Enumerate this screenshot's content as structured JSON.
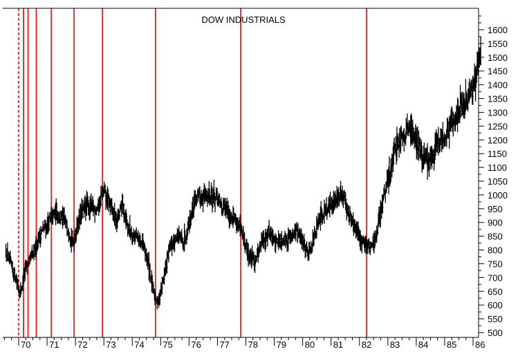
{
  "chart_data": {
    "type": "bar",
    "subtype": "ohlc",
    "title": "DOW INDUSTRIALS",
    "xlabel": "",
    "ylabel": "",
    "ylim": [
      470,
      1660
    ],
    "xlim": [
      1970.0,
      1986.4
    ],
    "grid": false,
    "y_axis_side": "right",
    "yticks": [
      500,
      550,
      600,
      650,
      700,
      750,
      800,
      850,
      900,
      950,
      1000,
      1050,
      1100,
      1150,
      1200,
      1250,
      1300,
      1350,
      1400,
      1450,
      1500,
      1550,
      1600
    ],
    "xticks": [
      {
        "x": 1970,
        "label": "70"
      },
      {
        "x": 1971,
        "label": "71"
      },
      {
        "x": 1972,
        "label": "72"
      },
      {
        "x": 1973,
        "label": "73"
      },
      {
        "x": 1974,
        "label": "74"
      },
      {
        "x": 1975,
        "label": "75"
      },
      {
        "x": 1976,
        "label": "76"
      },
      {
        "x": 1977,
        "label": "77"
      },
      {
        "x": 1978,
        "label": "78"
      },
      {
        "x": 1979,
        "label": "79"
      },
      {
        "x": 1980,
        "label": "80"
      },
      {
        "x": 1981,
        "label": "81"
      },
      {
        "x": 1982,
        "label": "82"
      },
      {
        "x": 1983,
        "label": "83"
      },
      {
        "x": 1984,
        "label": "84"
      },
      {
        "x": 1985,
        "label": "85"
      },
      {
        "x": 1986,
        "label": "86"
      }
    ],
    "line_color": "#000000",
    "vline_color": "#e0201c",
    "vlines": [
      {
        "x": 1970.0,
        "style": "dashed"
      },
      {
        "x": 1970.17,
        "style": "solid"
      },
      {
        "x": 1970.33,
        "style": "solid"
      },
      {
        "x": 1970.62,
        "style": "solid"
      },
      {
        "x": 1971.15,
        "style": "solid"
      },
      {
        "x": 1971.95,
        "style": "solid"
      },
      {
        "x": 1972.95,
        "style": "solid"
      },
      {
        "x": 1974.82,
        "style": "solid"
      },
      {
        "x": 1977.82,
        "style": "solid"
      },
      {
        "x": 1982.25,
        "style": "solid"
      }
    ],
    "series": [
      {
        "anchors": [
          [
            1969.55,
            790
          ],
          [
            1969.75,
            735
          ],
          [
            1969.95,
            680
          ],
          [
            1970.05,
            640
          ],
          [
            1970.25,
            740
          ],
          [
            1970.5,
            780
          ],
          [
            1970.75,
            860
          ],
          [
            1971.0,
            890
          ],
          [
            1971.3,
            940
          ],
          [
            1971.55,
            910
          ],
          [
            1971.75,
            880
          ],
          [
            1971.9,
            820
          ],
          [
            1972.1,
            910
          ],
          [
            1972.35,
            960
          ],
          [
            1972.6,
            950
          ],
          [
            1972.8,
            955
          ],
          [
            1972.95,
            1010
          ],
          [
            1973.2,
            970
          ],
          [
            1973.45,
            900
          ],
          [
            1973.65,
            970
          ],
          [
            1973.85,
            880
          ],
          [
            1974.1,
            850
          ],
          [
            1974.35,
            820
          ],
          [
            1974.55,
            760
          ],
          [
            1974.75,
            640
          ],
          [
            1974.9,
            610
          ],
          [
            1975.1,
            700
          ],
          [
            1975.3,
            800
          ],
          [
            1975.55,
            850
          ],
          [
            1975.8,
            830
          ],
          [
            1976.0,
            900
          ],
          [
            1976.2,
            985
          ],
          [
            1976.45,
            990
          ],
          [
            1976.7,
            1000
          ],
          [
            1976.95,
            990
          ],
          [
            1977.2,
            950
          ],
          [
            1977.45,
            930
          ],
          [
            1977.7,
            900
          ],
          [
            1977.9,
            840
          ],
          [
            1978.1,
            780
          ],
          [
            1978.3,
            760
          ],
          [
            1978.55,
            830
          ],
          [
            1978.8,
            870
          ],
          [
            1979.0,
            830
          ],
          [
            1979.3,
            840
          ],
          [
            1979.55,
            850
          ],
          [
            1979.75,
            870
          ],
          [
            1980.0,
            830
          ],
          [
            1980.2,
            790
          ],
          [
            1980.45,
            860
          ],
          [
            1980.7,
            940
          ],
          [
            1980.95,
            960
          ],
          [
            1981.2,
            990
          ],
          [
            1981.45,
            990
          ],
          [
            1981.7,
            910
          ],
          [
            1981.95,
            850
          ],
          [
            1982.15,
            830
          ],
          [
            1982.4,
            810
          ],
          [
            1982.6,
            840
          ],
          [
            1982.75,
            950
          ],
          [
            1982.95,
            1030
          ],
          [
            1983.15,
            1120
          ],
          [
            1983.35,
            1200
          ],
          [
            1983.55,
            1230
          ],
          [
            1983.8,
            1240
          ],
          [
            1984.0,
            1210
          ],
          [
            1984.15,
            1150
          ],
          [
            1984.4,
            1120
          ],
          [
            1984.6,
            1140
          ],
          [
            1984.75,
            1220
          ],
          [
            1984.95,
            1200
          ],
          [
            1985.2,
            1250
          ],
          [
            1985.45,
            1300
          ],
          [
            1985.7,
            1330
          ],
          [
            1985.95,
            1370
          ],
          [
            1986.1,
            1440
          ],
          [
            1986.25,
            1530
          ]
        ]
      }
    ]
  }
}
